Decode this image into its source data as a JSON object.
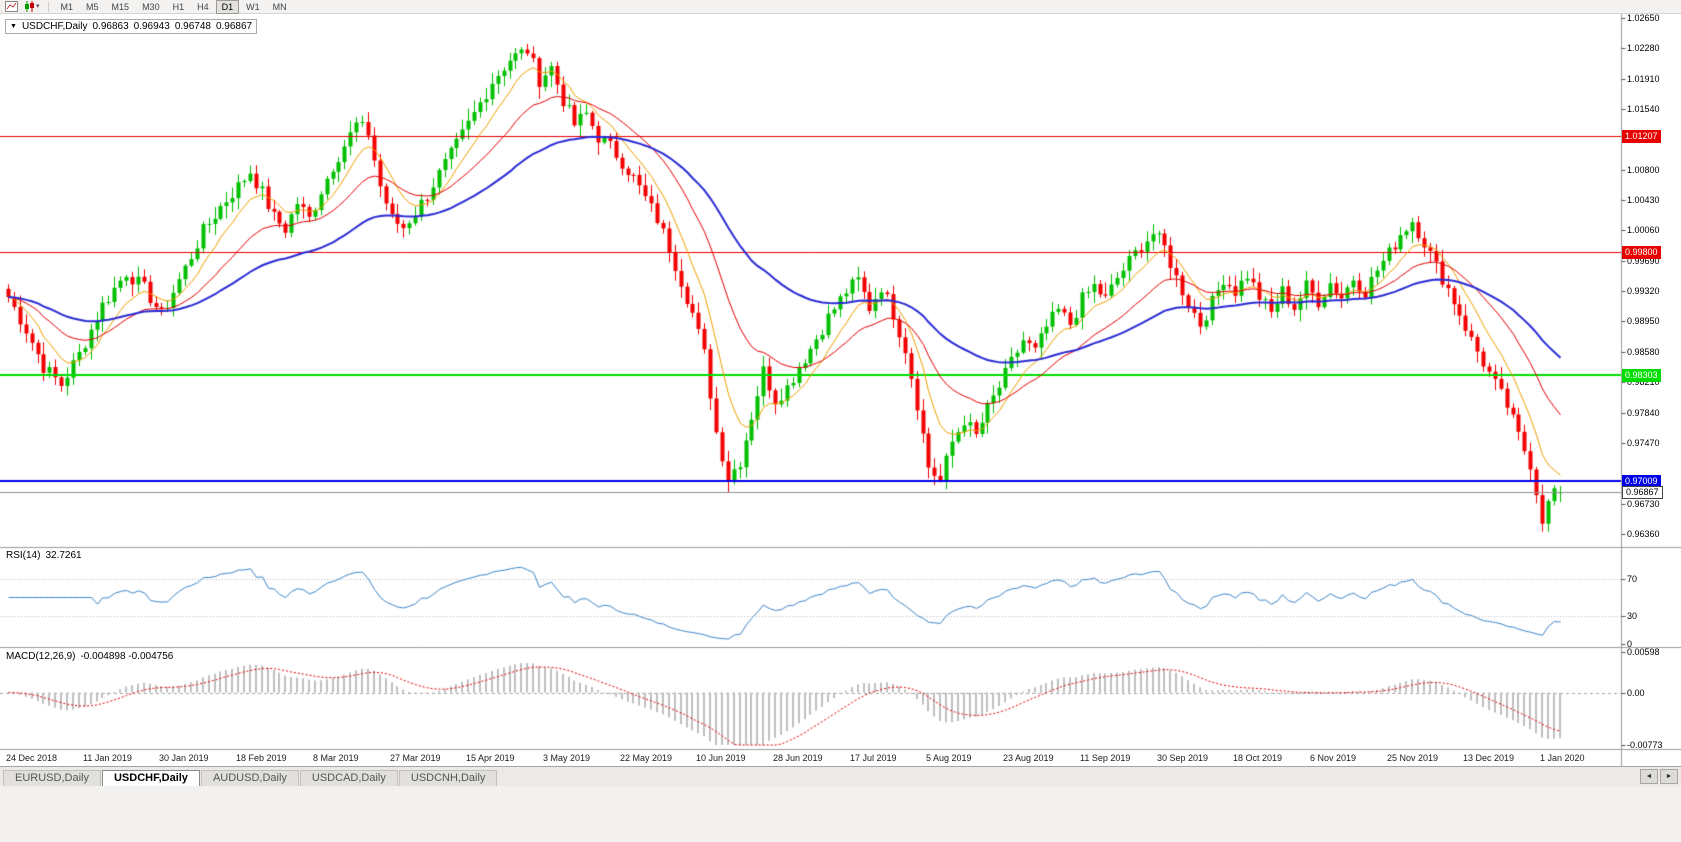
{
  "toolbar": {
    "timeframes": [
      "M1",
      "M5",
      "M15",
      "M30",
      "H1",
      "H4",
      "D1",
      "W1",
      "MN"
    ],
    "active_timeframe": "D1"
  },
  "icons": {
    "title_marker": "▼",
    "dropdown_caret": "▾",
    "tab_scroll_left": "◄",
    "tab_scroll_right": "►"
  },
  "header": {
    "symbol_period": "USDCHF,Daily",
    "open": "0.96863",
    "high": "0.96943",
    "low": "0.96748",
    "close": "0.96867"
  },
  "chart_data": {
    "type": "candlestick",
    "symbol": "USDCHF",
    "timeframe": "Daily",
    "bars": 264,
    "last_bar": {
      "open": 0.96863,
      "high": 0.96943,
      "low": 0.96748,
      "close": 0.96867
    },
    "candle_colors": {
      "bull": "#00BF00",
      "bear": "#F40000"
    },
    "price_axis": {
      "max": 1.027,
      "min": 0.962,
      "ticks": [
        "1.02650",
        "1.02280",
        "1.01910",
        "1.01540",
        "1.00800",
        "1.00430",
        "1.00060",
        "0.99690",
        "0.99320",
        "0.98950",
        "0.98580",
        "0.98210",
        "0.97840",
        "0.97470",
        "0.96730",
        "0.96360"
      ]
    },
    "horizontal_lines": [
      {
        "value": 1.01207,
        "label": "1.01207",
        "color": "#E60000",
        "width": 1
      },
      {
        "value": 0.998,
        "label": "0.99800",
        "color": "#E60000",
        "width": 1
      },
      {
        "value": 0.98303,
        "label": "0.98303",
        "color": "#00DD00",
        "width": 2
      },
      {
        "value": 0.97009,
        "label": "0.97009",
        "color": "#0000E8",
        "width": 2
      }
    ],
    "bid": {
      "value": 0.96867,
      "label": "0.96867",
      "line_color": "#8F8F8F"
    },
    "x_labels": [
      "24 Dec 2018",
      "11 Jan 2019",
      "30 Jan 2019",
      "18 Feb 2019",
      "8 Mar 2019",
      "27 Mar 2019",
      "15 Apr 2019",
      "3 May 2019",
      "22 May 2019",
      "10 Jun 2019",
      "28 Jun 2019",
      "17 Jul 2019",
      "5 Aug 2019",
      "23 Aug 2019",
      "11 Sep 2019",
      "30 Sep 2019",
      "18 Oct 2019",
      "6 Nov 2019",
      "25 Nov 2019",
      "13 Dec 2019",
      "1 Jan 2020"
    ],
    "bars_per_label": 13,
    "moving_averages": [
      {
        "period": 8,
        "color": "#F0A000",
        "width": 1
      },
      {
        "period": 21,
        "color": "#E60000",
        "width": 1
      },
      {
        "period": 50,
        "color": "#2B2BD5",
        "width": 2
      }
    ],
    "close_keypoints": [
      [
        0,
        0.9925
      ],
      [
        3,
        0.9885
      ],
      [
        6,
        0.984
      ],
      [
        9,
        0.9818
      ],
      [
        12,
        0.9855
      ],
      [
        16,
        0.9915
      ],
      [
        20,
        0.9955
      ],
      [
        23,
        0.9935
      ],
      [
        26,
        0.9903
      ],
      [
        30,
        0.996
      ],
      [
        33,
        1.0005
      ],
      [
        36,
        1.0035
      ],
      [
        39,
        1.006
      ],
      [
        41,
        1.0078
      ],
      [
        43,
        1.0052
      ],
      [
        45,
        1.0022
      ],
      [
        47,
        1.0008
      ],
      [
        49,
        1.004
      ],
      [
        51,
        1.002
      ],
      [
        53,
        1.0055
      ],
      [
        55,
        1.0085
      ],
      [
        57,
        1.011
      ],
      [
        59,
        1.0135
      ],
      [
        61,
        1.0125
      ],
      [
        63,
        1.006
      ],
      [
        65,
        1.002
      ],
      [
        67,
        1.001
      ],
      [
        69,
        1.0028
      ],
      [
        71,
        1.005
      ],
      [
        73,
        1.0075
      ],
      [
        76,
        1.011
      ],
      [
        79,
        1.0148
      ],
      [
        82,
        1.0188
      ],
      [
        85,
        1.0215
      ],
      [
        88,
        1.0226
      ],
      [
        90,
        1.019
      ],
      [
        92,
        1.0205
      ],
      [
        94,
        1.0165
      ],
      [
        96,
        1.0135
      ],
      [
        98,
        1.0148
      ],
      [
        100,
        1.012
      ],
      [
        102,
        1.0108
      ],
      [
        104,
        1.009
      ],
      [
        106,
        1.007
      ],
      [
        108,
        1.0045
      ],
      [
        110,
        1.002
      ],
      [
        112,
        0.9985
      ],
      [
        114,
        0.9945
      ],
      [
        116,
        0.9905
      ],
      [
        118,
        0.9855
      ],
      [
        120,
        0.976
      ],
      [
        122,
        0.9705
      ],
      [
        124,
        0.9725
      ],
      [
        126,
        0.978
      ],
      [
        128,
        0.9835
      ],
      [
        130,
        0.98
      ],
      [
        132,
        0.9815
      ],
      [
        134,
        0.984
      ],
      [
        136,
        0.9862
      ],
      [
        139,
        0.99
      ],
      [
        142,
        0.9932
      ],
      [
        144,
        0.9945
      ],
      [
        146,
        0.9912
      ],
      [
        148,
        0.9938
      ],
      [
        150,
        0.9905
      ],
      [
        152,
        0.9862
      ],
      [
        154,
        0.9795
      ],
      [
        156,
        0.9718
      ],
      [
        158,
        0.97
      ],
      [
        160,
        0.9748
      ],
      [
        162,
        0.9775
      ],
      [
        164,
        0.9755
      ],
      [
        166,
        0.9788
      ],
      [
        168,
        0.9815
      ],
      [
        170,
        0.9845
      ],
      [
        172,
        0.9872
      ],
      [
        174,
        0.9858
      ],
      [
        176,
        0.9888
      ],
      [
        178,
        0.9908
      ],
      [
        180,
        0.9892
      ],
      [
        182,
        0.9922
      ],
      [
        184,
        0.9938
      ],
      [
        186,
        0.9922
      ],
      [
        188,
        0.9948
      ],
      [
        190,
        0.9968
      ],
      [
        192,
        0.9988
      ],
      [
        194,
        1.0002
      ],
      [
        196,
        0.9985
      ],
      [
        198,
        0.9948
      ],
      [
        200,
        0.9918
      ],
      [
        202,
        0.9892
      ],
      [
        204,
        0.9918
      ],
      [
        206,
        0.9948
      ],
      [
        208,
        0.9932
      ],
      [
        210,
        0.9952
      ],
      [
        212,
        0.9925
      ],
      [
        214,
        0.9905
      ],
      [
        216,
        0.9932
      ],
      [
        218,
        0.9912
      ],
      [
        220,
        0.9938
      ],
      [
        222,
        0.992
      ],
      [
        224,
        0.9942
      ],
      [
        226,
        0.9925
      ],
      [
        228,
        0.9948
      ],
      [
        230,
        0.9932
      ],
      [
        232,
        0.9958
      ],
      [
        234,
        0.9978
      ],
      [
        236,
        1.0002
      ],
      [
        238,
        1.0018
      ],
      [
        240,
        0.9992
      ],
      [
        242,
        0.9962
      ],
      [
        244,
        0.9935
      ],
      [
        246,
        0.9905
      ],
      [
        248,
        0.9872
      ],
      [
        250,
        0.9845
      ],
      [
        252,
        0.9818
      ],
      [
        254,
        0.9792
      ],
      [
        256,
        0.9755
      ],
      [
        258,
        0.9722
      ],
      [
        260,
        0.9655
      ],
      [
        261,
        0.9672
      ],
      [
        262,
        0.969
      ],
      [
        263,
        0.96867
      ]
    ],
    "indicators": {
      "rsi": {
        "label": "RSI(14)",
        "value": "32.7261",
        "period": 14,
        "levels": [
          70,
          30
        ],
        "axis_labels": [
          {
            "text": "70",
            "value": 70
          },
          {
            "text": "30",
            "value": 30
          },
          {
            "text": "0",
            "value": 0
          }
        ],
        "color": "#3E86C8"
      },
      "macd": {
        "label": "MACD(12,26,9)",
        "values": "-0.004898 -0.004756",
        "fast": 12,
        "slow": 26,
        "signal": 9,
        "scale": {
          "max": 0.00598,
          "min": -0.00773
        },
        "axis_labels": [
          {
            "text": "0.00598",
            "value": 0.00598
          },
          {
            "text": "0.00",
            "value": 0
          },
          {
            "text": "-0.00773",
            "value": -0.00773
          }
        ],
        "histogram_color": "#BFBFBF",
        "signal_color": "#E60000"
      }
    }
  },
  "tabs": {
    "items": [
      {
        "label": "EURUSD,Daily",
        "active": false
      },
      {
        "label": "USDCHF,Daily",
        "active": true
      },
      {
        "label": "AUDUSD,Daily",
        "active": false
      },
      {
        "label": "USDCAD,Daily",
        "active": false
      },
      {
        "label": "USDCNH,Daily",
        "active": false
      }
    ]
  }
}
